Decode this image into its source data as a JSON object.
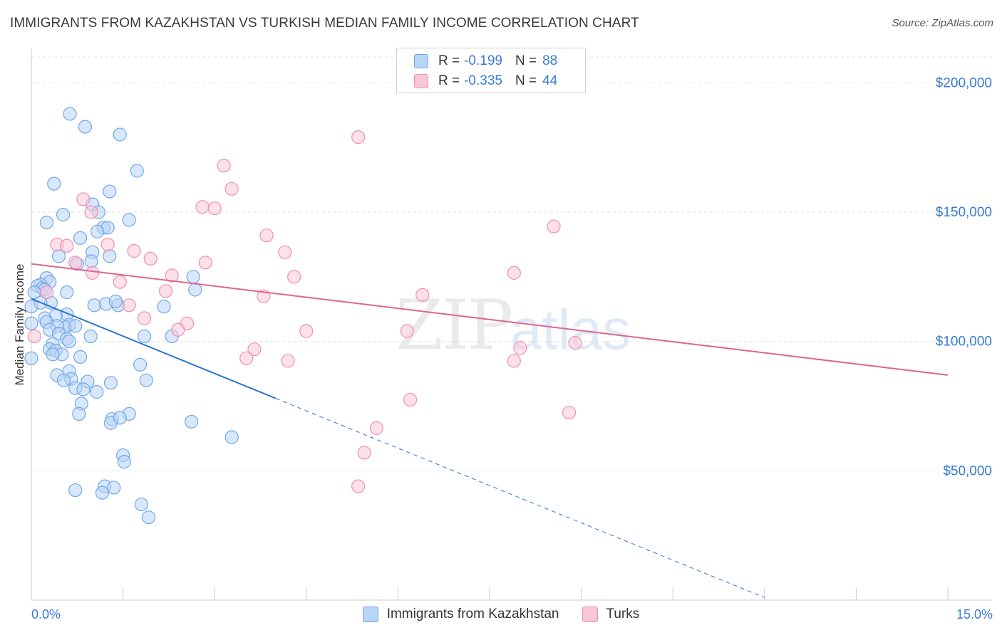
{
  "chart_data": {
    "type": "scatter",
    "title": "IMMIGRANTS FROM KAZAKHSTAN VS TURKISH MEDIAN FAMILY INCOME CORRELATION CHART",
    "source": "Source: ZipAtlas.com",
    "ylabel": "Median Family Income",
    "xlim": [
      0,
      15
    ],
    "ylim": [
      0,
      210000
    ],
    "x_tick_labels": [
      "0.0%",
      "15.0%"
    ],
    "y_ticks": [
      50000,
      100000,
      150000,
      200000
    ],
    "y_tick_labels": [
      "$50,000",
      "$100,000",
      "$150,000",
      "$200,000"
    ],
    "watermark": "ZIPatlas",
    "legend": [
      {
        "r_label": "R =",
        "r": "-0.199",
        "n_label": "N =",
        "n": "88"
      },
      {
        "r_label": "R =",
        "r": "-0.335",
        "n_label": "N =",
        "n": "44"
      }
    ],
    "series": [
      {
        "name": "Immigrants from Kazakhstan",
        "color": "#6fa8ea",
        "fill": "#b9d4f5",
        "line_color": "#2d73d2",
        "trend": {
          "x0": 0.0,
          "y0": 116500,
          "x1": 4.0,
          "y1": 78000,
          "dash_to_x": 12.0
        },
        "points": [
          [
            0.63,
            188000
          ],
          [
            0.88,
            183000
          ],
          [
            1.45,
            180000
          ],
          [
            1.73,
            166000
          ],
          [
            0.37,
            161000
          ],
          [
            1.28,
            158000
          ],
          [
            1.0,
            153000
          ],
          [
            1.1,
            150000
          ],
          [
            0.52,
            149000
          ],
          [
            1.6,
            147000
          ],
          [
            0.25,
            146000
          ],
          [
            1.18,
            144000
          ],
          [
            1.25,
            144000
          ],
          [
            1.08,
            142500
          ],
          [
            0.8,
            140000
          ],
          [
            1.0,
            134500
          ],
          [
            0.45,
            133000
          ],
          [
            1.28,
            133000
          ],
          [
            0.75,
            130000
          ],
          [
            0.98,
            131000
          ],
          [
            0.25,
            124500
          ],
          [
            0.3,
            123000
          ],
          [
            2.65,
            125000
          ],
          [
            0.15,
            122000
          ],
          [
            0.1,
            121500
          ],
          [
            0.18,
            120500
          ],
          [
            0.22,
            120000
          ],
          [
            0.58,
            119000
          ],
          [
            2.68,
            120000
          ],
          [
            0.05,
            119000
          ],
          [
            0.32,
            115000
          ],
          [
            1.03,
            114000
          ],
          [
            1.22,
            114500
          ],
          [
            1.42,
            114000
          ],
          [
            1.38,
            115500
          ],
          [
            2.17,
            113500
          ],
          [
            0.0,
            113500
          ],
          [
            0.58,
            110500
          ],
          [
            0.4,
            110000
          ],
          [
            0.22,
            109000
          ],
          [
            0.25,
            107500
          ],
          [
            0.0,
            107000
          ],
          [
            0.62,
            106500
          ],
          [
            0.55,
            105500
          ],
          [
            0.42,
            106000
          ],
          [
            0.72,
            106000
          ],
          [
            0.3,
            104500
          ],
          [
            0.45,
            103000
          ],
          [
            0.97,
            102000
          ],
          [
            1.85,
            102000
          ],
          [
            2.3,
            102000
          ],
          [
            0.58,
            101000
          ],
          [
            0.62,
            100000
          ],
          [
            0.35,
            99000
          ],
          [
            0.3,
            97000
          ],
          [
            0.4,
            96500
          ],
          [
            0.5,
            95000
          ],
          [
            0.35,
            95000
          ],
          [
            0.8,
            94000
          ],
          [
            0.0,
            93500
          ],
          [
            1.78,
            91000
          ],
          [
            0.62,
            88500
          ],
          [
            0.42,
            87000
          ],
          [
            0.65,
            85500
          ],
          [
            0.53,
            85000
          ],
          [
            0.92,
            84500
          ],
          [
            1.3,
            84000
          ],
          [
            1.88,
            85000
          ],
          [
            0.72,
            82000
          ],
          [
            0.85,
            81500
          ],
          [
            1.07,
            80500
          ],
          [
            0.82,
            76000
          ],
          [
            0.78,
            72000
          ],
          [
            1.6,
            72000
          ],
          [
            1.32,
            70000
          ],
          [
            2.62,
            69000
          ],
          [
            1.3,
            68500
          ],
          [
            3.28,
            63000
          ],
          [
            1.5,
            56000
          ],
          [
            1.52,
            53500
          ],
          [
            1.2,
            44000
          ],
          [
            1.35,
            43500
          ],
          [
            0.72,
            42500
          ],
          [
            1.16,
            41500
          ],
          [
            1.8,
            37000
          ],
          [
            1.92,
            32000
          ],
          [
            1.45,
            70500
          ],
          [
            0.15,
            115000
          ]
        ]
      },
      {
        "name": "Turks",
        "color": "#f18fb0",
        "fill": "#f9c6d8",
        "line_color": "#e0648f",
        "trend": {
          "x0": 0.0,
          "y0": 130000,
          "x1": 15.0,
          "y1": 87000
        },
        "points": [
          [
            5.35,
            179000
          ],
          [
            3.15,
            168000
          ],
          [
            3.28,
            159000
          ],
          [
            0.85,
            155000
          ],
          [
            2.8,
            152000
          ],
          [
            3.0,
            151500
          ],
          [
            0.98,
            150000
          ],
          [
            8.55,
            144500
          ],
          [
            3.85,
            141000
          ],
          [
            0.42,
            137500
          ],
          [
            1.25,
            137500
          ],
          [
            0.58,
            137000
          ],
          [
            4.15,
            134500
          ],
          [
            1.68,
            135000
          ],
          [
            1.95,
            132000
          ],
          [
            2.85,
            130500
          ],
          [
            0.72,
            130500
          ],
          [
            1.0,
            126500
          ],
          [
            7.9,
            126500
          ],
          [
            2.3,
            125500
          ],
          [
            4.3,
            125000
          ],
          [
            1.45,
            123000
          ],
          [
            0.25,
            119000
          ],
          [
            2.2,
            119500
          ],
          [
            6.4,
            118000
          ],
          [
            3.8,
            117500
          ],
          [
            1.6,
            114000
          ],
          [
            1.85,
            109000
          ],
          [
            2.55,
            107000
          ],
          [
            2.4,
            104500
          ],
          [
            4.5,
            104000
          ],
          [
            6.15,
            104000
          ],
          [
            0.05,
            102000
          ],
          [
            3.65,
            97000
          ],
          [
            7.9,
            92500
          ],
          [
            3.52,
            93500
          ],
          [
            4.2,
            92500
          ],
          [
            8.0,
            97500
          ],
          [
            8.9,
            99500
          ],
          [
            6.2,
            77500
          ],
          [
            5.65,
            66500
          ],
          [
            5.45,
            57000
          ],
          [
            5.35,
            44000
          ],
          [
            8.8,
            72500
          ]
        ]
      }
    ]
  }
}
